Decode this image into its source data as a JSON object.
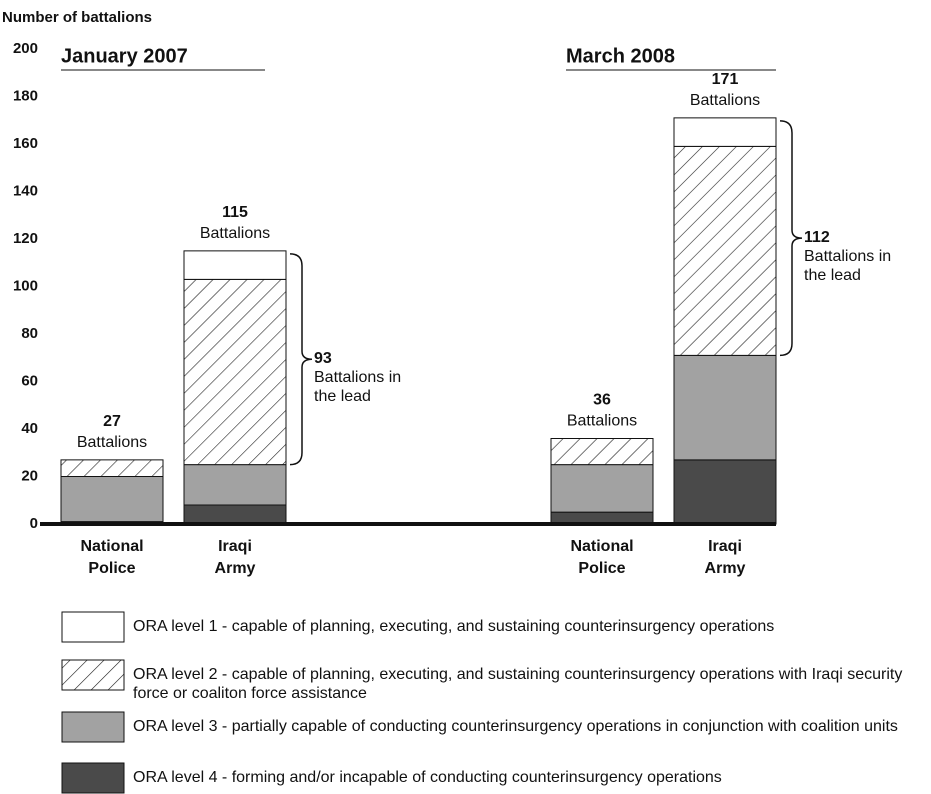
{
  "chart_data": {
    "type": "stacked_bar",
    "ylabel": "Number of battalions",
    "groups": [
      "January 2007",
      "March 2008"
    ],
    "categories": [
      "National Police",
      "Iraqi Army",
      "National Police",
      "Iraqi Army"
    ],
    "series": [
      {
        "name": "ORA level 4 - forming and/or incapable of conducting counterinsurgency operations",
        "color": "#4a4a4a",
        "values": [
          1,
          8,
          5,
          27
        ]
      },
      {
        "name": "ORA level 3 - partially capable of conducting counterinsurgency operations in conjunction with coalition units",
        "color": "#a2a2a2",
        "values": [
          19,
          17,
          20,
          44
        ]
      },
      {
        "name": "ORA level 2 - capable of planning, executing, and sustaining counterinsurgency operations with Iraqi security force or coaliton force assistance",
        "color": "#ffffff",
        "hatch": true,
        "values": [
          7,
          78,
          11,
          88
        ]
      },
      {
        "name": "ORA level 1 - capable of planning, executing, and sustaining counterinsurgency operations",
        "color": "#ffffff",
        "values": [
          0,
          12,
          0,
          12
        ]
      }
    ],
    "totals": [
      27,
      115,
      36,
      171
    ],
    "total_label": "Battalions",
    "in_lead": [
      93,
      112
    ],
    "in_lead_label": "Battalions in the lead",
    "ylim": [
      0,
      200
    ],
    "yticks": [
      0,
      20,
      40,
      60,
      80,
      100,
      120,
      140,
      160,
      180,
      200
    ]
  }
}
